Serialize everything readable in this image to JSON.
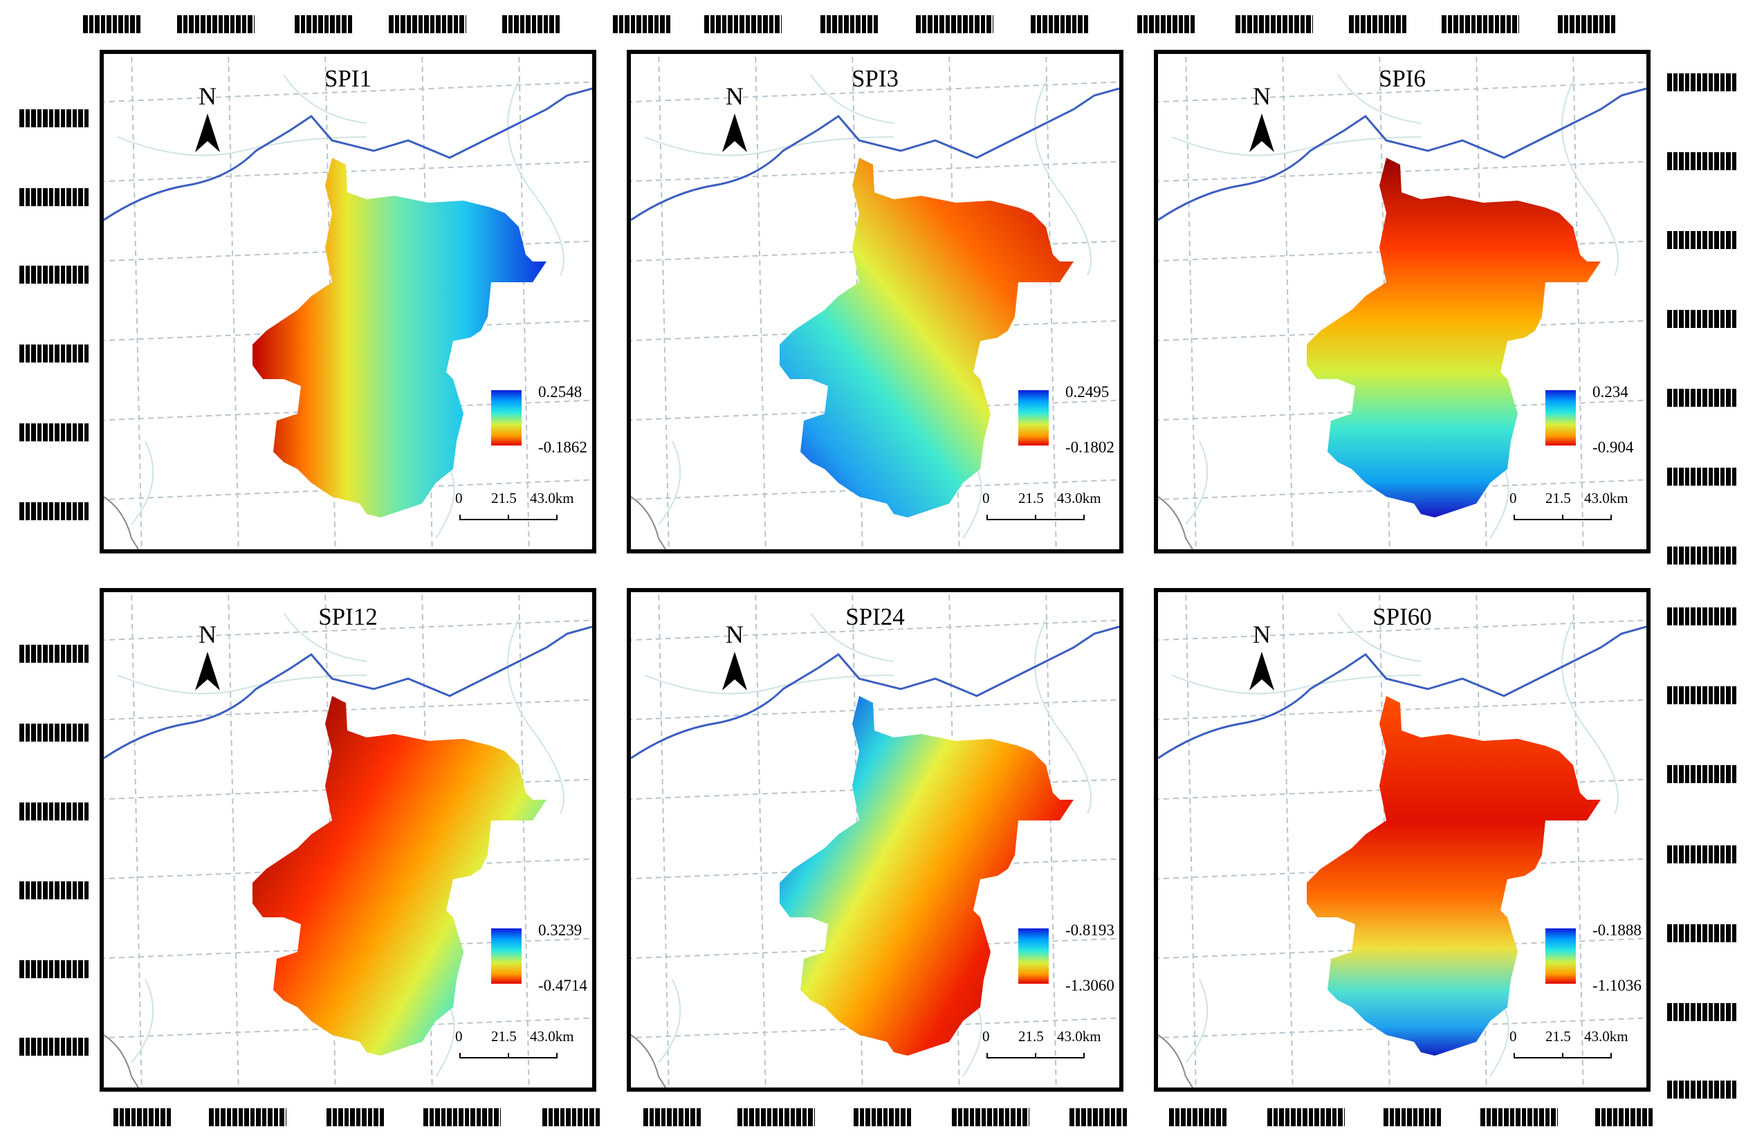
{
  "panels": [
    {
      "title": "SPI1",
      "legend_max": "0.2548",
      "legend_min": "-0.1862"
    },
    {
      "title": "SPI3",
      "legend_max": "0.2495",
      "legend_min": "-0.1802"
    },
    {
      "title": "SPI6",
      "legend_max": "0.234",
      "legend_min": "-0.904"
    },
    {
      "title": "SPI12",
      "legend_max": "0.3239",
      "legend_min": "-0.4714"
    },
    {
      "title": "SPI24",
      "legend_max": "-0.8193",
      "legend_min": "-1.3060"
    },
    {
      "title": "SPI60",
      "legend_max": "-0.1888",
      "legend_min": "-1.1036"
    }
  ],
  "north_label": "N",
  "scale_bar": {
    "tick0": "0",
    "tick1": "21.5",
    "tick2": "43.0km"
  },
  "colors": {
    "high": "#0a1adb",
    "mid_cyan": "#29e8e0",
    "mid_yellow": "#d6f040",
    "orange": "#ffa000",
    "low": "#e60000",
    "river": "#3a5fc0",
    "gridline": "#b8c4cc",
    "frame": "#000000"
  }
}
